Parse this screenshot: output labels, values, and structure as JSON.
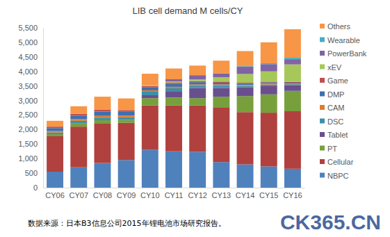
{
  "chart_data": {
    "type": "bar",
    "stacked": true,
    "title": "LIB cell demand  M cells/CY",
    "categories": [
      "CY06",
      "CY07",
      "CY08",
      "CY09",
      "CY10",
      "CY11",
      "CY12",
      "CY13",
      "CY14",
      "CY15",
      "CY16"
    ],
    "series": [
      {
        "name": "NBPC",
        "color": "#4f81bd",
        "values": [
          550,
          700,
          850,
          950,
          1300,
          1250,
          1230,
          880,
          800,
          730,
          650
        ]
      },
      {
        "name": "Cellular",
        "color": "#b0413e",
        "values": [
          1220,
          1400,
          1350,
          1280,
          1530,
          1580,
          1600,
          1870,
          1800,
          1850,
          1980
        ]
      },
      {
        "name": "PT",
        "color": "#77a03c",
        "values": [
          70,
          120,
          120,
          100,
          250,
          270,
          250,
          380,
          550,
          630,
          700
        ]
      },
      {
        "name": "Tablet",
        "color": "#6a4f8f",
        "values": [
          0,
          0,
          0,
          0,
          100,
          200,
          350,
          300,
          300,
          300,
          200
        ]
      },
      {
        "name": "DSC",
        "color": "#3e8fa8",
        "values": [
          60,
          80,
          90,
          90,
          120,
          120,
          80,
          80,
          50,
          40,
          30
        ]
      },
      {
        "name": "CAM",
        "color": "#e07b2c",
        "values": [
          50,
          60,
          60,
          60,
          50,
          50,
          40,
          40,
          30,
          30,
          20
        ]
      },
      {
        "name": "DMP",
        "color": "#3d6fb0",
        "values": [
          100,
          120,
          150,
          130,
          100,
          100,
          80,
          60,
          50,
          40,
          30
        ]
      },
      {
        "name": "Game",
        "color": "#c0504d",
        "values": [
          50,
          60,
          60,
          60,
          50,
          50,
          40,
          40,
          30,
          30,
          30
        ]
      },
      {
        "name": "xEV",
        "color": "#a6c85a",
        "values": [
          0,
          0,
          0,
          0,
          20,
          30,
          50,
          150,
          300,
          350,
          600
        ]
      },
      {
        "name": "PowerBank",
        "color": "#8064a2",
        "values": [
          0,
          0,
          0,
          0,
          0,
          80,
          150,
          130,
          250,
          250,
          180
        ]
      },
      {
        "name": "Wearable",
        "color": "#4bacc6",
        "values": [
          0,
          0,
          0,
          0,
          0,
          0,
          0,
          10,
          20,
          30,
          50
        ]
      },
      {
        "name": "Others",
        "color": "#f79646",
        "values": [
          200,
          260,
          450,
          400,
          400,
          370,
          330,
          430,
          520,
          720,
          980
        ]
      }
    ],
    "ylim": [
      0,
      5500
    ],
    "yticks": [
      0,
      500,
      {
        "value": 1000,
        "label": "1,000"
      },
      {
        "value": 1500,
        "label": "1,500"
      },
      {
        "value": 2000,
        "label": "2,000"
      },
      {
        "value": 2500,
        "label": "2,500"
      },
      {
        "value": 3000,
        "label": "3,000"
      },
      {
        "value": 3500,
        "label": "3,500"
      },
      {
        "value": 4000,
        "label": "4,000"
      },
      {
        "value": 4500,
        "label": "4,500"
      },
      {
        "value": 5000,
        "label": "5,000"
      },
      {
        "value": 5500,
        "label": "5,500"
      }
    ],
    "grid": false,
    "legend": "right",
    "annotations": [
      "数据来源：日本B3信息公司2015年锂电池市场研究报告。",
      "CK365.CN"
    ]
  }
}
